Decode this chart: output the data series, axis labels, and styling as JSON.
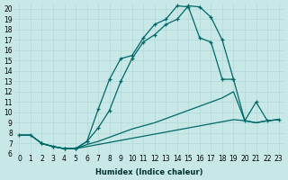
{
  "xlabel": "Humidex (Indice chaleur)",
  "bg_color": "#c8e8e8",
  "grid_color": "#b0d8d8",
  "line_color": "#006868",
  "xlim": [
    -0.5,
    23.5
  ],
  "ylim": [
    6,
    20.5
  ],
  "xticks": [
    0,
    1,
    2,
    3,
    4,
    5,
    6,
    7,
    8,
    9,
    10,
    11,
    12,
    13,
    14,
    15,
    16,
    17,
    18,
    19,
    20,
    21,
    22,
    23
  ],
  "yticks": [
    6,
    7,
    8,
    9,
    10,
    11,
    12,
    13,
    14,
    15,
    16,
    17,
    18,
    19,
    20
  ],
  "curve1_x": [
    0,
    1,
    2,
    3,
    4,
    5,
    6,
    7,
    8,
    9,
    10,
    11,
    12,
    13,
    14,
    15,
    16,
    17,
    18,
    19,
    20,
    21,
    22,
    23
  ],
  "curve1_y": [
    7.8,
    7.8,
    7.0,
    6.7,
    6.5,
    6.5,
    7.2,
    8.5,
    10.2,
    13.0,
    15.2,
    16.8,
    17.5,
    18.5,
    19.0,
    20.3,
    20.2,
    19.2,
    17.0,
    13.2,
    9.2,
    11.0,
    9.2,
    9.3
  ],
  "curve1_markers": true,
  "curve2_x": [
    0,
    1,
    2,
    3,
    4,
    5,
    6,
    7,
    8,
    9,
    10,
    11,
    12,
    13,
    14,
    15,
    16,
    17,
    18,
    19,
    20,
    21,
    22,
    23
  ],
  "curve2_y": [
    7.8,
    7.8,
    7.0,
    6.7,
    6.5,
    6.5,
    6.9,
    7.2,
    7.6,
    8.0,
    8.4,
    8.7,
    9.0,
    9.4,
    9.8,
    10.2,
    10.6,
    11.0,
    11.4,
    12.0,
    9.2,
    9.0,
    9.2,
    9.3
  ],
  "curve2_markers": false,
  "curve3_x": [
    0,
    1,
    2,
    3,
    4,
    5,
    6,
    7,
    8,
    9,
    10,
    11,
    12,
    13,
    14,
    15,
    16,
    17,
    18,
    19,
    20,
    21,
    22,
    23
  ],
  "curve3_y": [
    7.8,
    7.8,
    7.0,
    6.7,
    6.5,
    6.5,
    6.7,
    6.9,
    7.1,
    7.3,
    7.5,
    7.7,
    7.9,
    8.1,
    8.3,
    8.5,
    8.7,
    8.9,
    9.1,
    9.3,
    9.2,
    9.0,
    9.2,
    9.3
  ],
  "curve3_markers": false,
  "curve4_x": [
    2,
    3,
    4,
    5,
    6,
    7,
    8,
    9,
    10,
    11,
    12,
    13,
    14,
    15,
    16,
    17,
    18,
    19
  ],
  "curve4_y": [
    7.0,
    6.7,
    6.5,
    6.5,
    7.2,
    10.3,
    13.2,
    15.2,
    15.5,
    17.2,
    18.5,
    19.0,
    20.3,
    20.2,
    17.2,
    16.8,
    13.2,
    13.2
  ],
  "curve4_markers": true,
  "tick_fontsize": 5.5,
  "xlabel_fontsize": 6.0
}
